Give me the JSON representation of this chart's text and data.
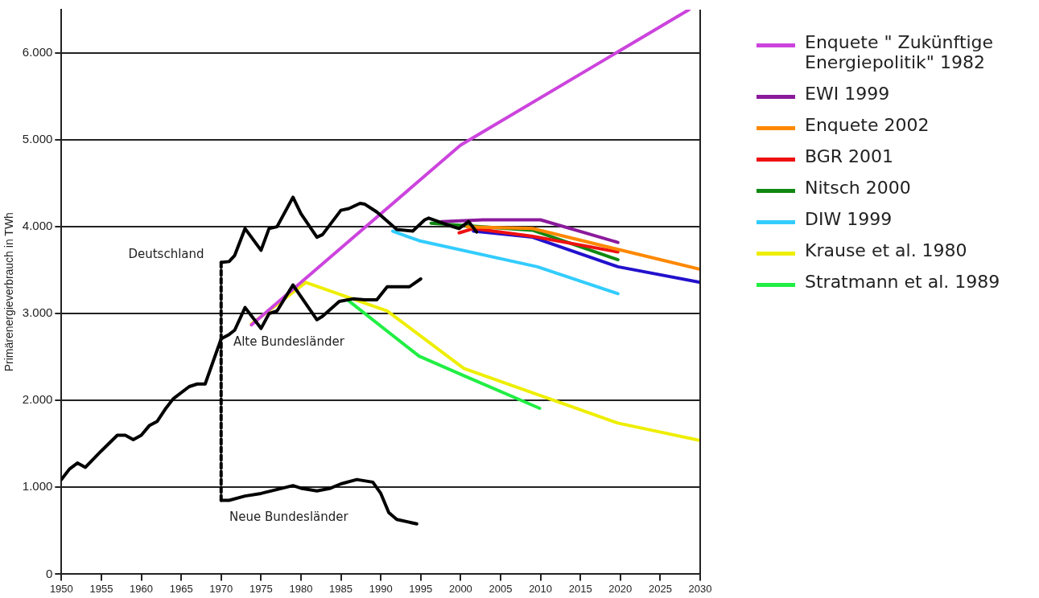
{
  "chart_data": {
    "type": "line",
    "ylabel": "Primärenergieverbrauch in TWh",
    "xlim": [
      1950,
      2030
    ],
    "ylim": [
      0,
      6500
    ],
    "xticks": [
      1950,
      1955,
      1960,
      1965,
      1970,
      1975,
      1980,
      1985,
      1990,
      1995,
      2000,
      2005,
      2010,
      2015,
      2020,
      2025,
      2030
    ],
    "yticks": [
      {
        "value": 0,
        "label": "0"
      },
      {
        "value": 1000,
        "label": "1.000"
      },
      {
        "value": 2000,
        "label": "2.000"
      },
      {
        "value": 3000,
        "label": "3.000"
      },
      {
        "value": 4000,
        "label": "4.000"
      },
      {
        "value": 5000,
        "label": "5.000"
      },
      {
        "value": 6000,
        "label": "6.000"
      }
    ],
    "grid": "y",
    "legend": "right",
    "marker": "none",
    "line_style": "solid",
    "annotations": [
      "Deutschland",
      "Alte Bundesländer",
      "Neue Bundesländer"
    ],
    "series": [
      {
        "color": "#000000",
        "x": [
          1950,
          1951,
          1952,
          1953,
          1955,
          1957,
          1958,
          1959,
          1960,
          1961,
          1962,
          1963,
          1964,
          1966,
          1967,
          1968,
          1970,
          1971,
          1971.7,
          1973,
          1975,
          1976,
          1977,
          1979,
          1982,
          1982.7,
          1984.8,
          1986.5,
          1988,
          1989.5,
          1990.8,
          1992.2,
          1993.6,
          1995
        ],
        "values": [
          1090,
          1210,
          1280,
          1230,
          1420,
          1600,
          1600,
          1550,
          1600,
          1710,
          1760,
          1900,
          2020,
          2160,
          2190,
          2190,
          2710,
          2760,
          2810,
          3070,
          2830,
          3000,
          3030,
          3330,
          2930,
          2970,
          3140,
          3170,
          3160,
          3160,
          3310,
          3310,
          3310,
          3400
        ]
      },
      {
        "color": "#000000",
        "x": [
          1970,
          1971,
          1971.7,
          1973,
          1975,
          1976,
          1977,
          1979,
          1980,
          1982,
          1982.7,
          1985,
          1986,
          1987.4,
          1988,
          1989.5,
          1992,
          1994,
          1995.5,
          1996,
          1998.4,
          1999.8,
          2001,
          2002
        ],
        "values": [
          3590,
          3600,
          3670,
          3980,
          3730,
          3980,
          4000,
          4340,
          4150,
          3880,
          3910,
          4190,
          4210,
          4270,
          4260,
          4170,
          3970,
          3950,
          4080,
          4100,
          4020,
          3980,
          4060,
          3940
        ]
      },
      {
        "color": "#000000",
        "x": [
          1970,
          1971,
          1973,
          1975,
          1979,
          1980,
          1982,
          1983.7,
          1985,
          1987,
          1989,
          1990,
          1991,
          1992,
          1994.5
        ],
        "values": [
          850,
          850,
          900,
          930,
          1020,
          990,
          960,
          990,
          1040,
          1090,
          1060,
          930,
          710,
          630,
          580
        ]
      },
      {
        "color": "#000000",
        "line_style": "dashed",
        "x": [
          1970,
          1970
        ],
        "values": [
          850,
          3590
        ]
      },
      {
        "name": "Enquete \" Zukünftige Energiepolitik\" 1982",
        "color": "#cc44dd",
        "x": [
          1973.8,
          2000,
          2028.6
        ],
        "values": [
          2870,
          4940,
          6500
        ]
      },
      {
        "name": "EWI 1999",
        "color": "#8b1a9b",
        "x": [
          1997.6,
          2002.8,
          2010,
          2019.7
        ],
        "values": [
          4060,
          4080,
          4080,
          3820
        ]
      },
      {
        "name": "Enquete 2002",
        "color": "#ff8800",
        "x": [
          2000.8,
          2009,
          2019.7,
          2030
        ],
        "values": [
          4000,
          3980,
          3740,
          3510
        ]
      },
      {
        "name": "BGR 2001",
        "color": "#ee1111",
        "x": [
          1999.8,
          2001.6,
          2009,
          2019.7
        ],
        "values": [
          3930,
          3980,
          3890,
          3710
        ]
      },
      {
        "name": "Nitsch 2000",
        "color": "#118811",
        "x": [
          1996.3,
          2009,
          2019.7
        ],
        "values": [
          4040,
          3960,
          3620
        ]
      },
      {
        "color": "#2211cc",
        "x": [
          2001.6,
          2009,
          2019.7,
          2030
        ],
        "values": [
          3950,
          3880,
          3540,
          3360
        ]
      },
      {
        "name": "DIW 1999",
        "color": "#33ccff",
        "x": [
          1991.5,
          1994.8,
          2009.6,
          2019.7
        ],
        "values": [
          3950,
          3840,
          3540,
          3230
        ]
      },
      {
        "name": "Krause et al. 1980",
        "color": "#eeee00",
        "x": [
          1973.8,
          1980.6,
          1990.8,
          2000.4,
          2019.7,
          2030
        ],
        "values": [
          2880,
          3360,
          3030,
          2370,
          1740,
          1540
        ]
      },
      {
        "name": "Stratmann et al. 1989",
        "color": "#22ee44",
        "x": [
          1985.8,
          1994.8,
          2000.8,
          2009.9
        ],
        "values": [
          3160,
          2510,
          2270,
          1910
        ]
      }
    ]
  }
}
